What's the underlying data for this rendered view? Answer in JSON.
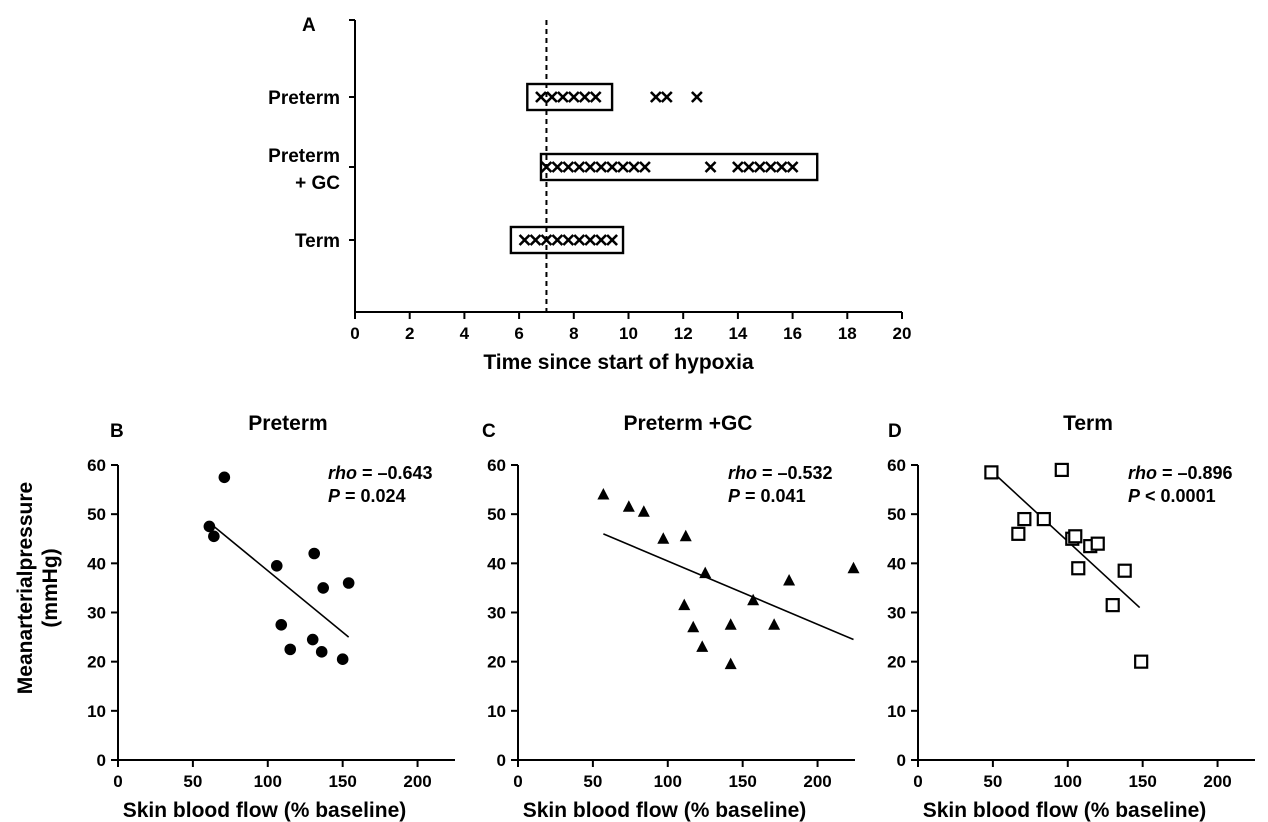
{
  "chart_data": [
    {
      "panel": "A",
      "type": "scatter",
      "xlabel": "Time since start of hypoxia",
      "xlim": [
        0,
        20
      ],
      "xticks": [
        0,
        2,
        4,
        6,
        8,
        10,
        12,
        14,
        16,
        18,
        20
      ],
      "reference_line_x": 7,
      "categories": [
        "Preterm",
        "Preterm\n+ GC",
        "Term"
      ],
      "series": [
        {
          "category": "Preterm",
          "box": [
            6.3,
            9.4
          ],
          "x": [
            6.8,
            7.2,
            7.6,
            8.0,
            8.4,
            8.8,
            11.0,
            11.4,
            12.5
          ]
        },
        {
          "category": "Preterm + GC",
          "box": [
            6.8,
            16.9
          ],
          "x": [
            7.0,
            7.4,
            7.8,
            8.2,
            8.6,
            9.0,
            9.4,
            9.8,
            10.2,
            10.6,
            13.0,
            14.0,
            14.4,
            14.8,
            15.2,
            15.6,
            16.0
          ]
        },
        {
          "category": "Term",
          "box": [
            5.7,
            9.8
          ],
          "x": [
            6.2,
            6.6,
            7.0,
            7.4,
            7.8,
            8.2,
            8.6,
            9.0,
            9.4
          ]
        }
      ]
    },
    {
      "panel": "B",
      "type": "scatter",
      "title": "Preterm",
      "marker": "circle",
      "xlabel": "Skin blood flow (% baseline)",
      "ylabel": "Meanarterialpressure (mmHg)",
      "xlim": [
        0,
        225
      ],
      "ylim": [
        0,
        60
      ],
      "xticks": [
        0,
        50,
        100,
        150,
        200
      ],
      "yticks": [
        0,
        10,
        20,
        30,
        40,
        50,
        60
      ],
      "x": [
        61,
        64,
        71,
        106,
        109,
        115,
        130,
        131,
        136,
        137,
        150,
        154
      ],
      "y": [
        47.5,
        45.5,
        57.5,
        39.5,
        27.5,
        22.5,
        24.5,
        42,
        22,
        35,
        20.5,
        36
      ],
      "trendline": {
        "x": [
          60,
          154
        ],
        "y": [
          48.5,
          25
        ]
      },
      "stats": {
        "rho_value": "= –0.643",
        "p_value": "= 0.024"
      }
    },
    {
      "panel": "C",
      "type": "scatter",
      "title": "Preterm +GC",
      "marker": "triangle",
      "xlabel": "Skin blood flow (% baseline)",
      "xlim": [
        0,
        225
      ],
      "ylim": [
        0,
        60
      ],
      "xticks": [
        0,
        50,
        100,
        150,
        200
      ],
      "yticks": [
        0,
        10,
        20,
        30,
        40,
        50,
        60
      ],
      "x": [
        57,
        74,
        84,
        97,
        111,
        112,
        117,
        123,
        125,
        142,
        142,
        157,
        171,
        181,
        224
      ],
      "y": [
        54,
        51.5,
        50.5,
        45,
        31.5,
        45.5,
        27,
        23,
        38,
        27.5,
        19.5,
        32.5,
        27.5,
        36.5,
        39
      ],
      "trendline": {
        "x": [
          57,
          224
        ],
        "y": [
          46,
          24.5
        ]
      },
      "stats": {
        "rho_value": "= –0.532",
        "p_value": "= 0.041"
      }
    },
    {
      "panel": "D",
      "type": "scatter",
      "title": "Term",
      "marker": "square",
      "xlabel": "Skin blood flow (% baseline)",
      "xlim": [
        0,
        225
      ],
      "ylim": [
        0,
        60
      ],
      "xticks": [
        0,
        50,
        100,
        150,
        200
      ],
      "yticks": [
        0,
        10,
        20,
        30,
        40,
        50,
        60
      ],
      "x": [
        49,
        67,
        71,
        84,
        96,
        103,
        105,
        107,
        115,
        120,
        130,
        138,
        149
      ],
      "y": [
        58.5,
        46,
        49,
        49,
        59,
        45,
        45.5,
        39,
        43.5,
        44,
        31.5,
        38.5,
        20
      ],
      "trendline": {
        "x": [
          50,
          148
        ],
        "y": [
          58.5,
          31
        ]
      },
      "stats": {
        "rho_value": "= –0.896",
        "p_value": "< 0.0001"
      }
    }
  ],
  "labels": {
    "rho": "rho",
    "p": "P"
  }
}
